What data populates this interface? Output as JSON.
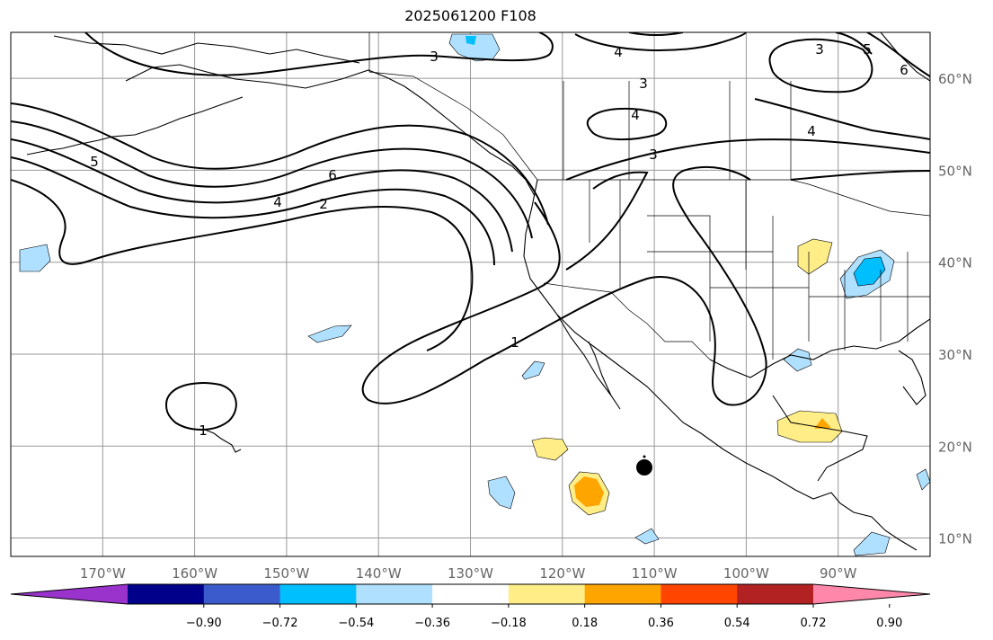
{
  "title": "2025061200 F108",
  "map": {
    "projection": "PlateCarree",
    "lon_range": [
      -180,
      -80
    ],
    "lat_range": [
      8,
      65
    ],
    "gridlines": true
  },
  "lon_ticks": [
    {
      "value": -170,
      "label": "170°W"
    },
    {
      "value": -160,
      "label": "160°W"
    },
    {
      "value": -150,
      "label": "150°W"
    },
    {
      "value": -140,
      "label": "140°W"
    },
    {
      "value": -130,
      "label": "130°W"
    },
    {
      "value": -120,
      "label": "120°W"
    },
    {
      "value": -110,
      "label": "110°W"
    },
    {
      "value": -100,
      "label": "100°W"
    },
    {
      "value": -90,
      "label": "90°W"
    }
  ],
  "lat_ticks": [
    {
      "value": 60,
      "label": "60°N"
    },
    {
      "value": 50,
      "label": "50°N"
    },
    {
      "value": 40,
      "label": "40°N"
    },
    {
      "value": 30,
      "label": "30°N"
    },
    {
      "value": 20,
      "label": "20°N"
    },
    {
      "value": 10,
      "label": "10°N"
    }
  ],
  "colorbar": {
    "colors": [
      "#9933cc",
      "#00008b",
      "#3b5bcc",
      "#00bfff",
      "#b0e0ff",
      "#ffffff",
      "#ffee88",
      "#ffa500",
      "#ff4500",
      "#b22222",
      "#ff88aa"
    ],
    "labels": [
      "−0.90",
      "−0.72",
      "−0.54",
      "−0.36",
      "−0.18",
      "0.18",
      "0.36",
      "0.54",
      "0.72",
      "0.90"
    ],
    "extend": "both"
  },
  "contour_labels": [
    "3",
    "4",
    "3",
    "4",
    "3",
    "5",
    "6",
    "4",
    "3",
    "5",
    "6",
    "4",
    "2",
    "1",
    "1"
  ],
  "marker": "storm-center-dot"
}
